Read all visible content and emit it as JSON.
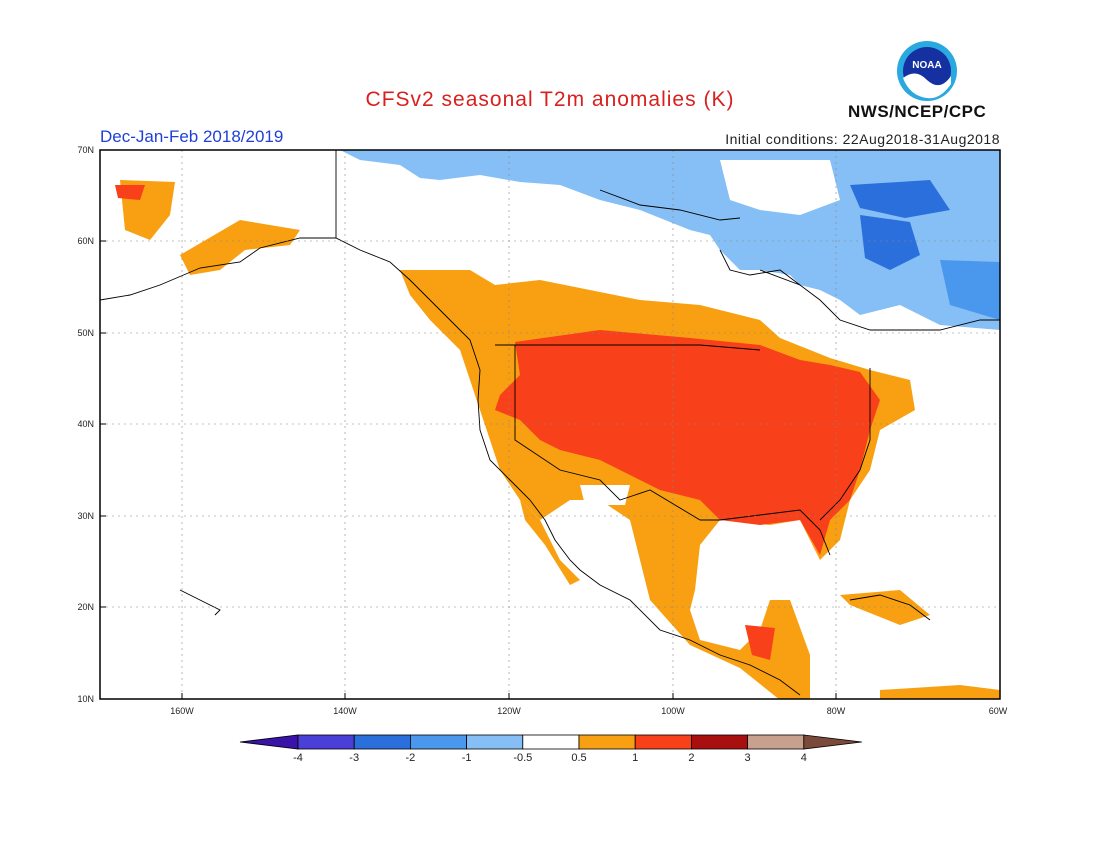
{
  "title": "CFSv2 seasonal T2m anomalies (K)",
  "season": "Dec-Jan-Feb 2018/2019",
  "initial_conditions": "Initial conditions: 22Aug2018-31Aug2018",
  "agency": "NWS/NCEP/CPC",
  "logo_text": "NOAA",
  "lat_labels": [
    "70N",
    "60N",
    "50N",
    "40N",
    "30N",
    "20N",
    "10N"
  ],
  "lon_labels": [
    "160W",
    "140W",
    "120W",
    "100W",
    "80W",
    "60W"
  ],
  "colorbar": {
    "labels": [
      "-4",
      "-3",
      "-2",
      "-1",
      "-0.5",
      "0.5",
      "1",
      "2",
      "3",
      "4"
    ],
    "colors": [
      "#3a14a8",
      "#4a3fd6",
      "#2a6fdc",
      "#4a97ee",
      "#86bff5",
      "#ffffff",
      "#f8a011",
      "#f8401a",
      "#a80f0f",
      "#c8a08e",
      "#7a4a3a"
    ]
  }
}
